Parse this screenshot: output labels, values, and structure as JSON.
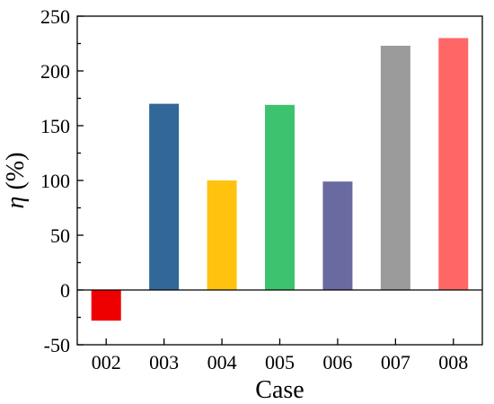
{
  "chart_data": {
    "type": "bar",
    "categories": [
      "002",
      "003",
      "004",
      "005",
      "006",
      "007",
      "008"
    ],
    "values": [
      -28,
      170,
      100,
      169,
      99,
      223,
      230
    ],
    "colors": [
      "#ee0000",
      "#326799",
      "#ffc20e",
      "#3dc36f",
      "#696aa0",
      "#9b9b9b",
      "#ff6767"
    ],
    "xlabel": "Case",
    "ylabel_symbol": "η",
    "ylabel_unit": " (%)",
    "ylim": [
      -50,
      250
    ],
    "yticks": [
      -50,
      0,
      50,
      100,
      150,
      200,
      250
    ],
    "grid": false,
    "zero_line": true
  }
}
